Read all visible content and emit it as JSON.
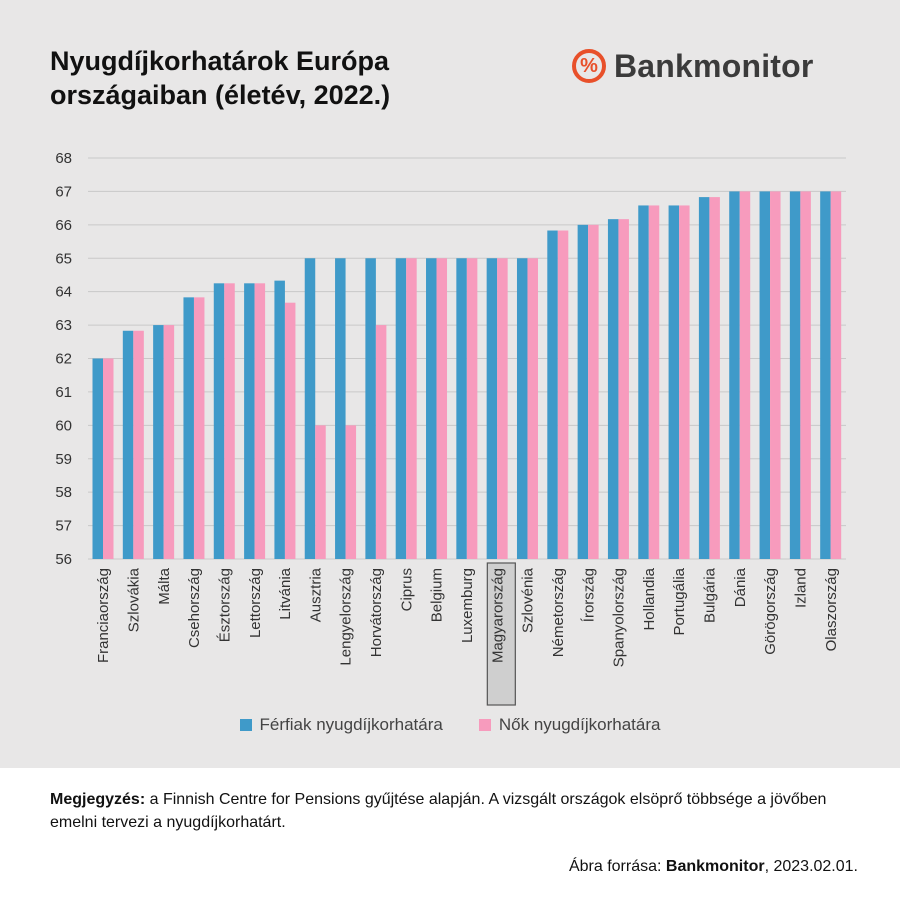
{
  "header": {
    "title": "Nyugdíjkorhatárok Európa országaiban (életév, 2022.)",
    "brand_symbol": "%",
    "brand_name": "Bankmonitor",
    "brand_color": "#e8502a"
  },
  "chart_data": {
    "type": "bar",
    "title": "Nyugdíjkorhatárok Európa országaiban (életév, 2022.)",
    "categories": [
      "Franciaország",
      "Szlovákia",
      "Málta",
      "Csehország",
      "Észtország",
      "Lettország",
      "Litvánia",
      "Ausztria",
      "Lengyelország",
      "Horvátország",
      "Ciprus",
      "Belgium",
      "Luxemburg",
      "Magyarország",
      "Szlovénia",
      "Németország",
      "Írország",
      "Spanyolország",
      "Hollandia",
      "Portugália",
      "Bulgária",
      "Dánia",
      "Görögország",
      "Izland",
      "Olaszország"
    ],
    "highlighted_category": "Magyarország",
    "series": [
      {
        "name": "Férfiak nyugdíjkorhatára",
        "color": "#3f9ac9",
        "values": [
          62,
          62.83,
          63,
          63.83,
          64.25,
          64.25,
          64.33,
          65,
          65,
          65,
          65,
          65,
          65,
          65,
          65,
          65.83,
          66,
          66.17,
          66.58,
          66.58,
          66.83,
          67,
          67,
          67,
          67
        ]
      },
      {
        "name": "Nők nyugdíjkorhatára",
        "color": "#f79bbd",
        "values": [
          62,
          62.83,
          63,
          63.83,
          64.25,
          64.25,
          63.67,
          60,
          60,
          63,
          65,
          65,
          65,
          65,
          65,
          65.83,
          66,
          66.17,
          66.58,
          66.58,
          66.83,
          67,
          67,
          67,
          67
        ]
      }
    ],
    "ylim": [
      56,
      68
    ],
    "yticks": [
      56,
      57,
      58,
      59,
      60,
      61,
      62,
      63,
      64,
      65,
      66,
      67,
      68
    ],
    "xlabel": "",
    "ylabel": "",
    "grid": true,
    "legend": "bottom"
  },
  "legend": {
    "men": "Férfiak nyugdíjkorhatára",
    "women": "Nők nyugdíjkorhatára"
  },
  "note": {
    "label": "Megjegyzés:",
    "text": "a Finnish Centre for Pensions gyűjtése alapján. A vizsgált országok elsöprő többsége a jövőben emelni tervezi  a nyugdíjkorhatárt."
  },
  "source": {
    "prefix": "Ábra forrása:",
    "brand": "Bankmonitor",
    "date": ", 2023.02.01."
  }
}
